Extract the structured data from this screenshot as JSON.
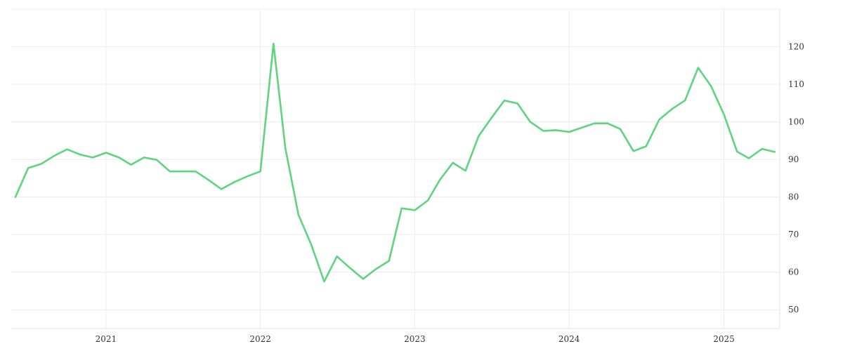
{
  "chart_data": {
    "type": "line",
    "title": "",
    "xlabel": "",
    "ylabel": "",
    "x_range": [
      "2020-06-01",
      "2025-05-01"
    ],
    "ylim": [
      45,
      130
    ],
    "y_ticks": [
      50,
      60,
      70,
      80,
      90,
      100,
      110,
      120
    ],
    "x_ticks": [
      {
        "date": "2021-01-01",
        "label": "2021"
      },
      {
        "date": "2022-01-01",
        "label": "2022"
      },
      {
        "date": "2023-01-01",
        "label": "2023"
      },
      {
        "date": "2024-01-01",
        "label": "2024"
      },
      {
        "date": "2025-01-01",
        "label": "2025"
      }
    ],
    "y_axis_position": "right",
    "grid": true,
    "line_color": "#5ed47f",
    "series": [
      {
        "x": [
          "2020-06",
          "2020-07",
          "2020-08",
          "2020-09",
          "2020-10",
          "2020-11",
          "2020-12",
          "2021-01",
          "2021-02",
          "2021-03",
          "2021-04",
          "2021-05",
          "2021-06",
          "2021-07",
          "2021-08",
          "2021-09",
          "2021-10",
          "2021-11",
          "2021-12",
          "2022-01",
          "2022-02",
          "2022-03",
          "2022-04",
          "2022-05",
          "2022-06",
          "2022-07",
          "2022-08",
          "2022-09",
          "2022-10",
          "2022-11",
          "2022-12",
          "2023-01",
          "2023-02",
          "2023-03",
          "2023-04",
          "2023-05",
          "2023-06",
          "2023-07",
          "2023-08",
          "2023-09",
          "2023-10",
          "2023-11",
          "2023-12",
          "2024-01",
          "2024-02",
          "2024-03",
          "2024-04",
          "2024-05",
          "2024-06",
          "2024-07",
          "2024-08",
          "2024-09",
          "2024-10",
          "2024-11",
          "2024-12",
          "2025-01",
          "2025-02",
          "2025-03",
          "2025-04",
          "2025-05"
        ],
        "y": [
          80,
          87.7,
          88.8,
          91,
          92.7,
          91.3,
          90.5,
          91.8,
          90.5,
          88.6,
          90.5,
          89.9,
          86.8,
          86.8,
          86.8,
          84.5,
          82.1,
          84,
          85.5,
          86.8,
          120.8,
          93,
          75.3,
          67.4,
          57.5,
          64.2,
          61.1,
          58.2,
          60.8,
          63,
          77,
          76.5,
          79.1,
          84.5,
          89.1,
          87,
          96.2,
          101,
          105.7,
          104.9,
          100,
          97.6,
          97.8,
          97.3,
          98.5,
          99.6,
          99.6,
          98.1,
          92.2,
          93.5,
          100.6,
          103.5,
          105.7,
          114.4,
          109.6,
          102,
          92.1,
          90.3,
          92.8,
          92
        ]
      }
    ]
  }
}
